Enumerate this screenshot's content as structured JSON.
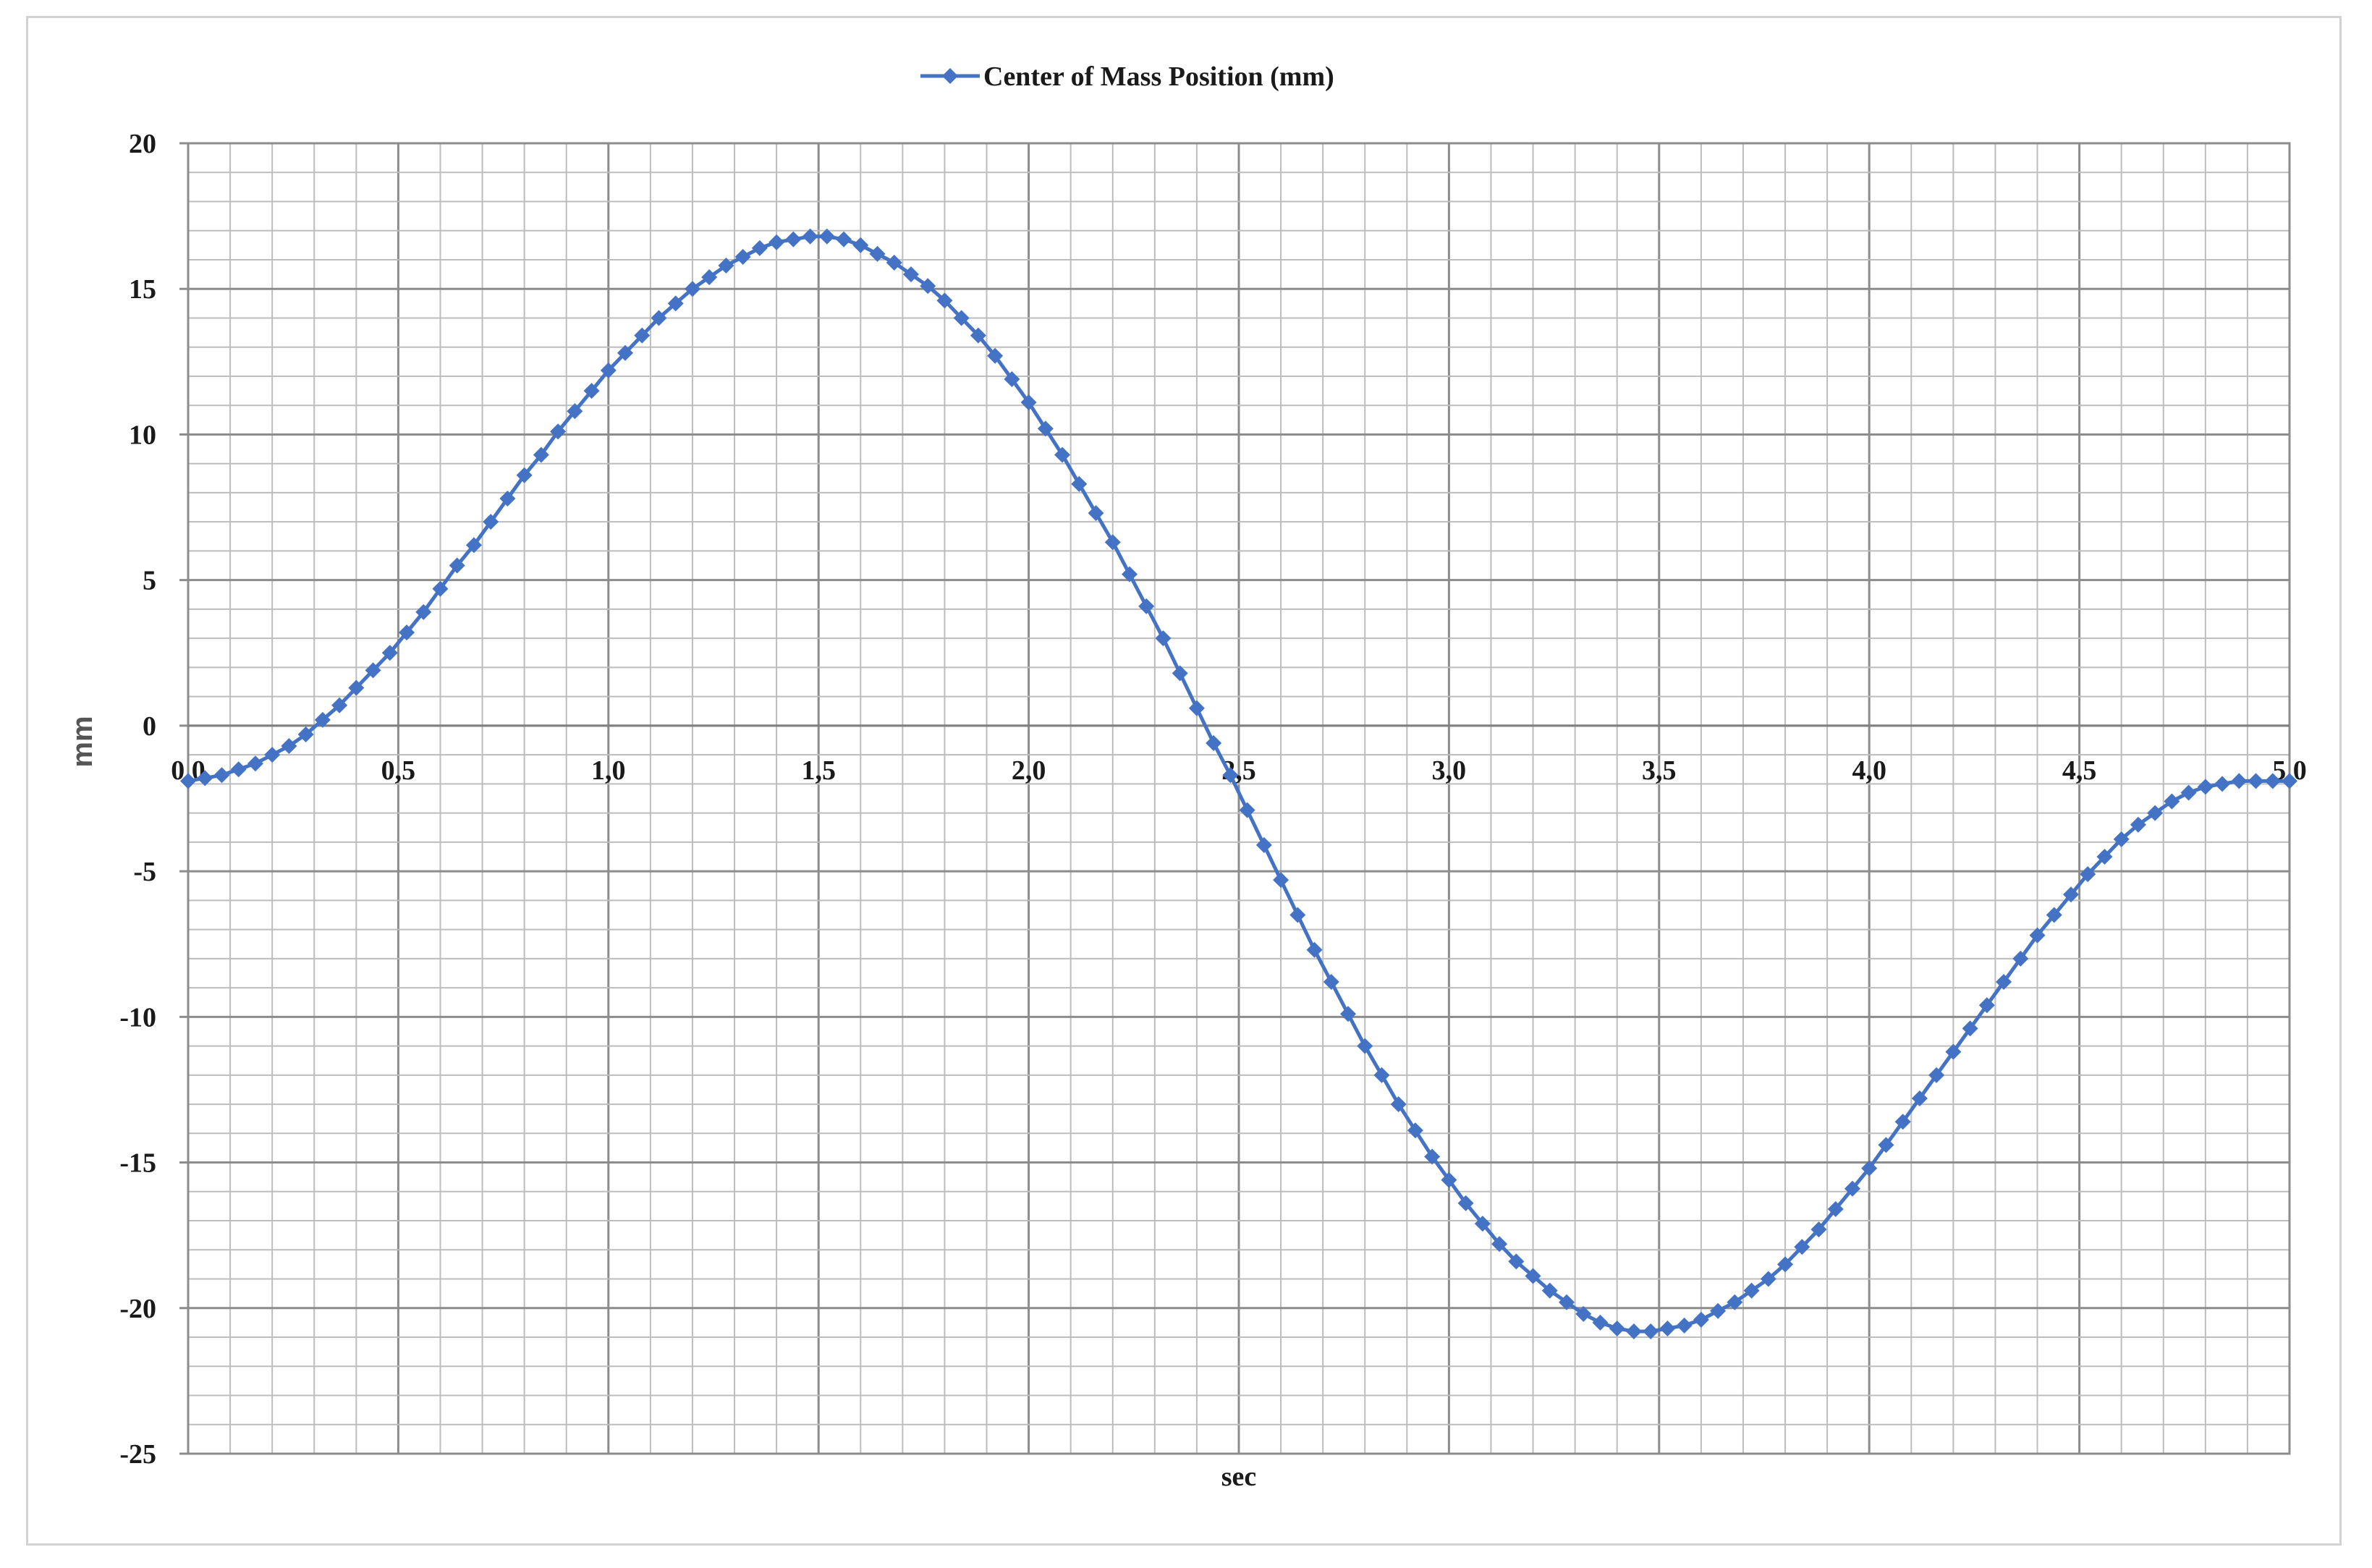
{
  "chart_data": {
    "type": "line",
    "title": "",
    "xlabel": "sec",
    "ylabel": "mm",
    "xlim": [
      0.0,
      5.0
    ],
    "ylim": [
      -25,
      20
    ],
    "xticks": [
      "0,0",
      "0,5",
      "1,0",
      "1,5",
      "2,0",
      "2,5",
      "3,0",
      "3,5",
      "4,0",
      "4,5",
      "5,0"
    ],
    "yticks": [
      "20",
      "15",
      "10",
      "5",
      "0",
      "-5",
      "-10",
      "-15",
      "-20",
      "-25"
    ],
    "grid": true,
    "legend_position": "top-center",
    "series": [
      {
        "name": "Center of Mass Position (mm)",
        "color": "#4472C4",
        "marker": "diamond",
        "x": [
          0.0,
          0.04,
          0.08,
          0.12,
          0.16,
          0.2,
          0.24,
          0.28,
          0.32,
          0.36,
          0.4,
          0.44,
          0.48,
          0.52,
          0.56,
          0.6,
          0.64,
          0.68,
          0.72,
          0.76,
          0.8,
          0.84,
          0.88,
          0.92,
          0.96,
          1.0,
          1.04,
          1.08,
          1.12,
          1.16,
          1.2,
          1.24,
          1.28,
          1.32,
          1.36,
          1.4,
          1.44,
          1.48,
          1.52,
          1.56,
          1.6,
          1.64,
          1.68,
          1.72,
          1.76,
          1.8,
          1.84,
          1.88,
          1.92,
          1.96,
          2.0,
          2.04,
          2.08,
          2.12,
          2.16,
          2.2,
          2.24,
          2.28,
          2.32,
          2.36,
          2.4,
          2.44,
          2.48,
          2.52,
          2.56,
          2.6,
          2.64,
          2.68,
          2.72,
          2.76,
          2.8,
          2.84,
          2.88,
          2.92,
          2.96,
          3.0,
          3.04,
          3.08,
          3.12,
          3.16,
          3.2,
          3.24,
          3.28,
          3.32,
          3.36,
          3.4,
          3.44,
          3.48,
          3.52,
          3.56,
          3.6,
          3.64,
          3.68,
          3.72,
          3.76,
          3.8,
          3.84,
          3.88,
          3.92,
          3.96,
          4.0,
          4.04,
          4.08,
          4.12,
          4.16,
          4.2,
          4.24,
          4.28,
          4.32,
          4.36,
          4.4,
          4.44,
          4.48,
          4.52,
          4.56,
          4.6,
          4.64,
          4.68,
          4.72,
          4.76,
          4.8,
          4.84,
          4.88,
          4.92,
          4.96,
          5.0
        ],
        "y": [
          -1.9,
          -1.8,
          -1.7,
          -1.5,
          -1.3,
          -1.0,
          -0.7,
          -0.3,
          0.2,
          0.7,
          1.3,
          1.9,
          2.5,
          3.2,
          3.9,
          4.7,
          5.5,
          6.2,
          7.0,
          7.8,
          8.6,
          9.3,
          10.1,
          10.8,
          11.5,
          12.2,
          12.8,
          13.4,
          14.0,
          14.5,
          15.0,
          15.4,
          15.8,
          16.1,
          16.4,
          16.6,
          16.7,
          16.8,
          16.8,
          16.7,
          16.5,
          16.2,
          15.9,
          15.5,
          15.1,
          14.6,
          14.0,
          13.4,
          12.7,
          11.9,
          11.1,
          10.2,
          9.3,
          8.3,
          7.3,
          6.3,
          5.2,
          4.1,
          3.0,
          1.8,
          0.6,
          -0.6,
          -1.7,
          -2.9,
          -4.1,
          -5.3,
          -6.5,
          -7.7,
          -8.8,
          -9.9,
          -11.0,
          -12.0,
          -13.0,
          -13.9,
          -14.8,
          -15.6,
          -16.4,
          -17.1,
          -17.8,
          -18.4,
          -18.9,
          -19.4,
          -19.8,
          -20.2,
          -20.5,
          -20.7,
          -20.8,
          -20.8,
          -20.7,
          -20.6,
          -20.4,
          -20.1,
          -19.8,
          -19.4,
          -19.0,
          -18.5,
          -17.9,
          -17.3,
          -16.6,
          -15.9,
          -15.2,
          -14.4,
          -13.6,
          -12.8,
          -12.0,
          -11.2,
          -10.4,
          -9.6,
          -8.8,
          -8.0,
          -7.2,
          -6.5,
          -5.8,
          -5.1,
          -4.5,
          -3.9,
          -3.4,
          -3.0,
          -2.6,
          -2.3,
          -2.1,
          -2.0,
          -1.9,
          -1.9,
          -1.9,
          -1.9
        ]
      }
    ]
  }
}
